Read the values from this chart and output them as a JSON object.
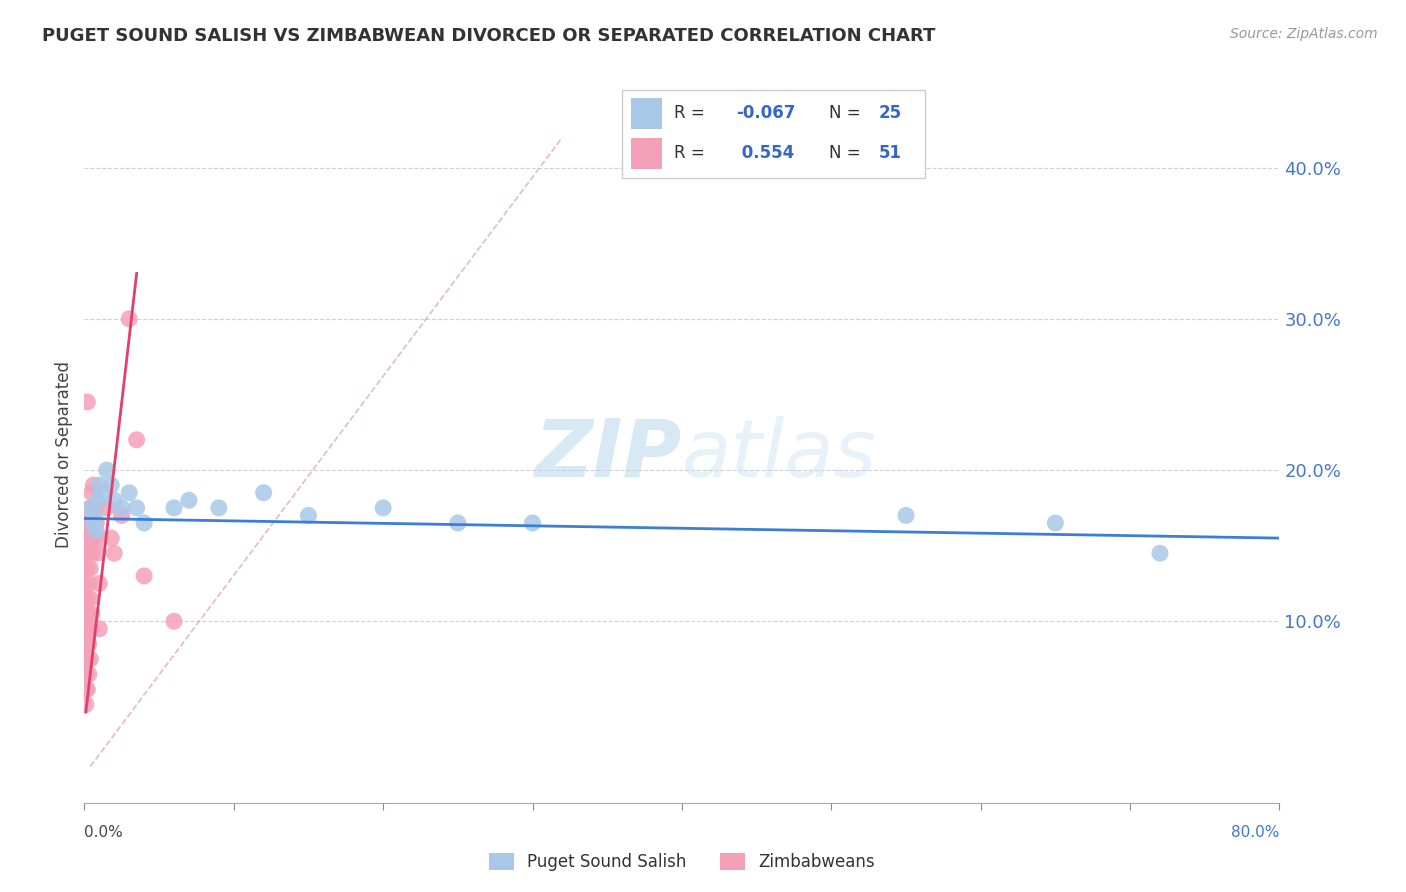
{
  "title": "PUGET SOUND SALISH VS ZIMBABWEAN DIVORCED OR SEPARATED CORRELATION CHART",
  "source": "Source: ZipAtlas.com",
  "ylabel": "Divorced or Separated",
  "watermark": "ZIPatlas",
  "xlim": [
    0.0,
    0.8
  ],
  "ylim": [
    -0.02,
    0.44
  ],
  "yticks": [
    0.1,
    0.2,
    0.3,
    0.4
  ],
  "xticks": [
    0.0,
    0.1,
    0.2,
    0.3,
    0.4,
    0.5,
    0.6,
    0.7,
    0.8
  ],
  "legend_blue_R": "-0.067",
  "legend_blue_N": "25",
  "legend_pink_R": "0.554",
  "legend_pink_N": "51",
  "blue_scatter_color": "#a8c8e8",
  "pink_scatter_color": "#f4a0b8",
  "blue_line_color": "#3a7fd5",
  "pink_line_color": "#e0406a",
  "dashed_color": "#e0a8b8",
  "background_color": "#ffffff",
  "grid_color": "#cccccc",
  "scatter_blue": [
    [
      0.004,
      0.175
    ],
    [
      0.006,
      0.165
    ],
    [
      0.007,
      0.17
    ],
    [
      0.008,
      0.16
    ],
    [
      0.009,
      0.18
    ],
    [
      0.01,
      0.19
    ],
    [
      0.012,
      0.185
    ],
    [
      0.015,
      0.2
    ],
    [
      0.018,
      0.19
    ],
    [
      0.02,
      0.18
    ],
    [
      0.025,
      0.175
    ],
    [
      0.03,
      0.185
    ],
    [
      0.035,
      0.175
    ],
    [
      0.04,
      0.165
    ],
    [
      0.06,
      0.175
    ],
    [
      0.07,
      0.18
    ],
    [
      0.09,
      0.175
    ],
    [
      0.12,
      0.185
    ],
    [
      0.15,
      0.17
    ],
    [
      0.2,
      0.175
    ],
    [
      0.25,
      0.165
    ],
    [
      0.3,
      0.165
    ],
    [
      0.55,
      0.17
    ],
    [
      0.65,
      0.165
    ],
    [
      0.72,
      0.145
    ]
  ],
  "scatter_pink": [
    [
      0.001,
      0.165
    ],
    [
      0.001,
      0.155
    ],
    [
      0.001,
      0.145
    ],
    [
      0.001,
      0.135
    ],
    [
      0.001,
      0.125
    ],
    [
      0.001,
      0.115
    ],
    [
      0.001,
      0.105
    ],
    [
      0.001,
      0.095
    ],
    [
      0.001,
      0.085
    ],
    [
      0.001,
      0.075
    ],
    [
      0.001,
      0.065
    ],
    [
      0.001,
      0.055
    ],
    [
      0.001,
      0.045
    ],
    [
      0.002,
      0.155
    ],
    [
      0.002,
      0.135
    ],
    [
      0.002,
      0.115
    ],
    [
      0.002,
      0.095
    ],
    [
      0.002,
      0.075
    ],
    [
      0.002,
      0.055
    ],
    [
      0.003,
      0.165
    ],
    [
      0.003,
      0.145
    ],
    [
      0.003,
      0.125
    ],
    [
      0.003,
      0.105
    ],
    [
      0.003,
      0.085
    ],
    [
      0.003,
      0.065
    ],
    [
      0.004,
      0.175
    ],
    [
      0.004,
      0.155
    ],
    [
      0.004,
      0.135
    ],
    [
      0.004,
      0.115
    ],
    [
      0.004,
      0.095
    ],
    [
      0.004,
      0.075
    ],
    [
      0.005,
      0.185
    ],
    [
      0.005,
      0.145
    ],
    [
      0.005,
      0.105
    ],
    [
      0.006,
      0.19
    ],
    [
      0.006,
      0.155
    ],
    [
      0.007,
      0.175
    ],
    [
      0.008,
      0.165
    ],
    [
      0.009,
      0.145
    ],
    [
      0.01,
      0.155
    ],
    [
      0.01,
      0.125
    ],
    [
      0.01,
      0.095
    ],
    [
      0.015,
      0.175
    ],
    [
      0.018,
      0.155
    ],
    [
      0.02,
      0.145
    ],
    [
      0.025,
      0.17
    ],
    [
      0.03,
      0.3
    ],
    [
      0.035,
      0.22
    ],
    [
      0.04,
      0.13
    ],
    [
      0.06,
      0.1
    ],
    [
      0.002,
      0.245
    ]
  ],
  "blue_line_x": [
    0.0,
    0.8
  ],
  "blue_line_y": [
    0.168,
    0.155
  ],
  "pink_line_x_start": 0.001,
  "pink_line_x_end": 0.035,
  "pink_line_y_start": 0.04,
  "pink_line_y_end": 0.33,
  "dashed_line_x": [
    0.004,
    0.32
  ],
  "dashed_line_y": [
    0.004,
    0.42
  ]
}
